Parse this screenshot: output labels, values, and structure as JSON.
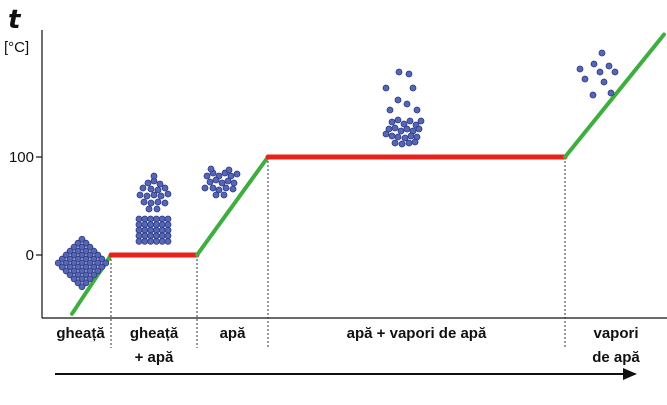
{
  "chart_data": {
    "type": "line",
    "ylabel": "t",
    "yunit": "[°C]",
    "y_ticks": [
      {
        "value": 0,
        "label": "0"
      },
      {
        "value": 100,
        "label": "100"
      }
    ],
    "ylim": [
      -60,
      225
    ],
    "segments": [
      {
        "state": "heating",
        "y_start": -60,
        "y_end": 0,
        "color": "#3fae3f"
      },
      {
        "state": "plateau",
        "y_start": 0,
        "y_end": 0,
        "color": "#e8221b"
      },
      {
        "state": "heating",
        "y_start": 0,
        "y_end": 100,
        "color": "#3fae3f"
      },
      {
        "state": "plateau",
        "y_start": 100,
        "y_end": 100,
        "color": "#e8221b"
      },
      {
        "state": "heating",
        "y_start": 100,
        "y_end": 225,
        "color": "#3fae3f"
      }
    ],
    "phases": [
      {
        "lines": [
          "gheață"
        ]
      },
      {
        "lines": [
          "gheață",
          "+ apă"
        ]
      },
      {
        "lines": [
          "apă"
        ]
      },
      {
        "lines": [
          "apă + vapori de apă"
        ]
      },
      {
        "lines": [
          "vapori",
          "de apă"
        ]
      }
    ],
    "colors": {
      "heating": "#3fae3f",
      "plateau": "#e8221b",
      "molecule": "#5566b5",
      "molecule_stroke": "#2c3880"
    }
  }
}
